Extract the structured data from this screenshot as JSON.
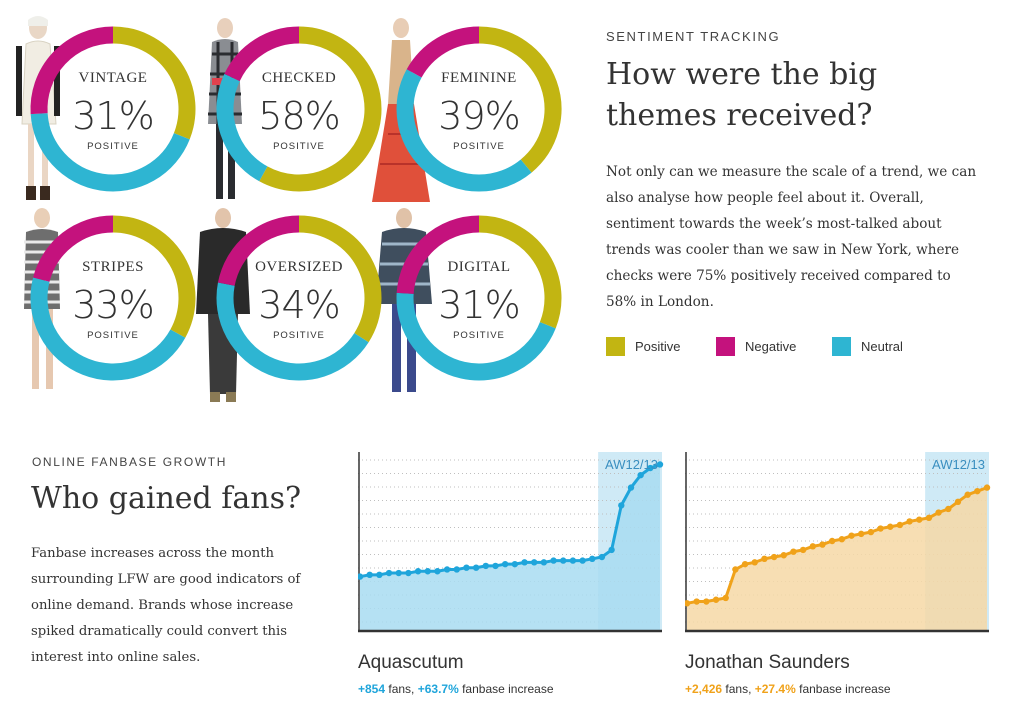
{
  "colors": {
    "positive": "#c2b512",
    "negative": "#c4127d",
    "neutral": "#2eb5d2",
    "line_blue": "#1fa5db",
    "fill_blue": "#a8dcf1",
    "line_orange": "#f0a21a",
    "fill_orange": "#f6d8a6"
  },
  "sentiment": {
    "kicker": "SENTIMENT TRACKING",
    "heading_line1": "How were the big",
    "heading_line2": "themes received?",
    "body": [
      "Not only can we measure the scale of a trend, we can",
      "also analyse how people feel about it. Overall,",
      "sentiment towards the week’s most-talked about",
      "trends was cooler than we saw in New York, where",
      "checks were 75% positively received compared to",
      "58% in London."
    ],
    "legend": [
      "Positive",
      "Negative",
      "Neutral"
    ]
  },
  "chart_data": [
    {
      "type": "pie",
      "title": "VINTAGE",
      "label": "31%",
      "sublabel": "POSITIVE",
      "slices": [
        {
          "name": "Positive",
          "value": 31
        },
        {
          "name": "Neutral",
          "value": 43
        },
        {
          "name": "Negative",
          "value": 26
        }
      ]
    },
    {
      "type": "pie",
      "title": "CHECKED",
      "label": "58%",
      "sublabel": "POSITIVE",
      "slices": [
        {
          "name": "Positive",
          "value": 58
        },
        {
          "name": "Neutral",
          "value": 24
        },
        {
          "name": "Negative",
          "value": 18
        }
      ]
    },
    {
      "type": "pie",
      "title": "FEMININE",
      "label": "39%",
      "sublabel": "POSITIVE",
      "slices": [
        {
          "name": "Positive",
          "value": 39
        },
        {
          "name": "Neutral",
          "value": 44
        },
        {
          "name": "Negative",
          "value": 17
        }
      ]
    },
    {
      "type": "pie",
      "title": "STRIPES",
      "label": "33%",
      "sublabel": "POSITIVE",
      "slices": [
        {
          "name": "Positive",
          "value": 33
        },
        {
          "name": "Neutral",
          "value": 46
        },
        {
          "name": "Negative",
          "value": 21
        }
      ]
    },
    {
      "type": "pie",
      "title": "OVERSIZED",
      "label": "34%",
      "sublabel": "POSITIVE",
      "slices": [
        {
          "name": "Positive",
          "value": 34
        },
        {
          "name": "Neutral",
          "value": 44
        },
        {
          "name": "Negative",
          "value": 22
        }
      ]
    },
    {
      "type": "pie",
      "title": "DIGITAL",
      "label": "31%",
      "sublabel": "POSITIVE",
      "slices": [
        {
          "name": "Positive",
          "value": 31
        },
        {
          "name": "Neutral",
          "value": 45
        },
        {
          "name": "Negative",
          "value": 24
        }
      ]
    },
    {
      "type": "area",
      "title": "Aquascutum",
      "highlight_label": "AW12/13",
      "highlight_from": 0.79,
      "grid": true,
      "values": [
        0.3,
        0.31,
        0.31,
        0.32,
        0.32,
        0.32,
        0.33,
        0.33,
        0.33,
        0.34,
        0.34,
        0.35,
        0.35,
        0.36,
        0.36,
        0.37,
        0.37,
        0.38,
        0.38,
        0.38,
        0.39,
        0.39,
        0.39,
        0.39,
        0.4,
        0.41,
        0.45,
        0.7,
        0.8,
        0.87,
        0.91,
        0.93
      ],
      "fans": "+854",
      "increase": "+63.7%"
    },
    {
      "type": "area",
      "title": "Jonathan Saunders",
      "highlight_label": "AW12/13",
      "highlight_from": 0.79,
      "grid": true,
      "values": [
        0.15,
        0.16,
        0.16,
        0.17,
        0.18,
        0.34,
        0.37,
        0.38,
        0.4,
        0.41,
        0.42,
        0.44,
        0.45,
        0.47,
        0.48,
        0.5,
        0.51,
        0.53,
        0.54,
        0.55,
        0.57,
        0.58,
        0.59,
        0.61,
        0.62,
        0.63,
        0.66,
        0.68,
        0.72,
        0.76,
        0.78,
        0.8
      ],
      "fans": "+2,426",
      "increase": "+27.4%"
    }
  ],
  "fanbase": {
    "kicker": "ONLINE FANBASE GROWTH",
    "heading": "Who gained fans?",
    "body": [
      "Fanbase increases across the month",
      "surrounding LFW are good indicators of",
      "online demand. Brands whose increase",
      "spiked dramatically could convert this",
      "interest into online sales."
    ],
    "fans_word": " fans, ",
    "increase_word": " fanbase increase"
  }
}
